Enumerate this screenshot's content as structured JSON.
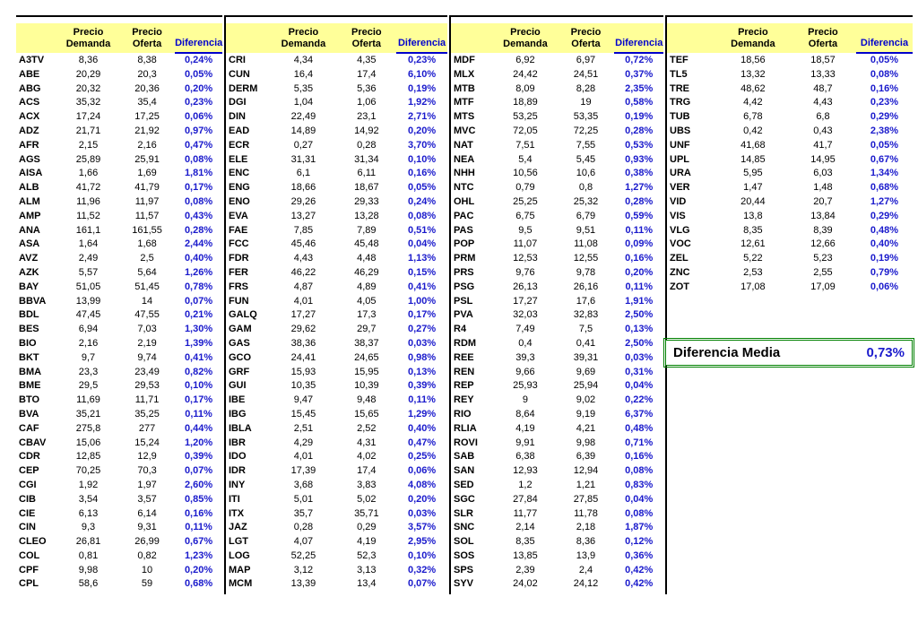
{
  "columns": {
    "ticker": "",
    "demanda": "Precio\nDemanda",
    "oferta": "Precio\nOferta",
    "diferencia": "Diferencia"
  },
  "colors": {
    "header_bg": "#FFFF99",
    "diferencia_text": "#1A1ACC",
    "header_diferencia_text": "#0000CC",
    "grid_line": "#000000",
    "summary_border": "#008000"
  },
  "groups": [
    {
      "rows": [
        [
          "A3TV",
          "8,36",
          "8,38",
          "0,24%"
        ],
        [
          "ABE",
          "20,29",
          "20,3",
          "0,05%"
        ],
        [
          "ABG",
          "20,32",
          "20,36",
          "0,20%"
        ],
        [
          "ACS",
          "35,32",
          "35,4",
          "0,23%"
        ],
        [
          "ACX",
          "17,24",
          "17,25",
          "0,06%"
        ],
        [
          "ADZ",
          "21,71",
          "21,92",
          "0,97%"
        ],
        [
          "AFR",
          "2,15",
          "2,16",
          "0,47%"
        ],
        [
          "AGS",
          "25,89",
          "25,91",
          "0,08%"
        ],
        [
          "AISA",
          "1,66",
          "1,69",
          "1,81%"
        ],
        [
          "ALB",
          "41,72",
          "41,79",
          "0,17%"
        ],
        [
          "ALM",
          "11,96",
          "11,97",
          "0,08%"
        ],
        [
          "AMP",
          "11,52",
          "11,57",
          "0,43%"
        ],
        [
          "ANA",
          "161,1",
          "161,55",
          "0,28%"
        ],
        [
          "ASA",
          "1,64",
          "1,68",
          "2,44%"
        ],
        [
          "AVZ",
          "2,49",
          "2,5",
          "0,40%"
        ],
        [
          "AZK",
          "5,57",
          "5,64",
          "1,26%"
        ],
        [
          "BAY",
          "51,05",
          "51,45",
          "0,78%"
        ],
        [
          "BBVA",
          "13,99",
          "14",
          "0,07%"
        ],
        [
          "BDL",
          "47,45",
          "47,55",
          "0,21%"
        ],
        [
          "BES",
          "6,94",
          "7,03",
          "1,30%"
        ],
        [
          "BIO",
          "2,16",
          "2,19",
          "1,39%"
        ],
        [
          "BKT",
          "9,7",
          "9,74",
          "0,41%"
        ],
        [
          "BMA",
          "23,3",
          "23,49",
          "0,82%"
        ],
        [
          "BME",
          "29,5",
          "29,53",
          "0,10%"
        ],
        [
          "BTO",
          "11,69",
          "11,71",
          "0,17%"
        ],
        [
          "BVA",
          "35,21",
          "35,25",
          "0,11%"
        ],
        [
          "CAF",
          "275,8",
          "277",
          "0,44%"
        ],
        [
          "CBAV",
          "15,06",
          "15,24",
          "1,20%"
        ],
        [
          "CDR",
          "12,85",
          "12,9",
          "0,39%"
        ],
        [
          "CEP",
          "70,25",
          "70,3",
          "0,07%"
        ],
        [
          "CGI",
          "1,92",
          "1,97",
          "2,60%"
        ],
        [
          "CIB",
          "3,54",
          "3,57",
          "0,85%"
        ],
        [
          "CIE",
          "6,13",
          "6,14",
          "0,16%"
        ],
        [
          "CIN",
          "9,3",
          "9,31",
          "0,11%"
        ],
        [
          "CLEO",
          "26,81",
          "26,99",
          "0,67%"
        ],
        [
          "COL",
          "0,81",
          "0,82",
          "1,23%"
        ],
        [
          "CPF",
          "9,98",
          "10",
          "0,20%"
        ],
        [
          "CPL",
          "58,6",
          "59",
          "0,68%"
        ]
      ]
    },
    {
      "rows": [
        [
          "CRI",
          "4,34",
          "4,35",
          "0,23%"
        ],
        [
          "CUN",
          "16,4",
          "17,4",
          "6,10%"
        ],
        [
          "DERM",
          "5,35",
          "5,36",
          "0,19%"
        ],
        [
          "DGI",
          "1,04",
          "1,06",
          "1,92%"
        ],
        [
          "DIN",
          "22,49",
          "23,1",
          "2,71%"
        ],
        [
          "EAD",
          "14,89",
          "14,92",
          "0,20%"
        ],
        [
          "ECR",
          "0,27",
          "0,28",
          "3,70%"
        ],
        [
          "ELE",
          "31,31",
          "31,34",
          "0,10%"
        ],
        [
          "ENC",
          "6,1",
          "6,11",
          "0,16%"
        ],
        [
          "ENG",
          "18,66",
          "18,67",
          "0,05%"
        ],
        [
          "ENO",
          "29,26",
          "29,33",
          "0,24%"
        ],
        [
          "EVA",
          "13,27",
          "13,28",
          "0,08%"
        ],
        [
          "FAE",
          "7,85",
          "7,89",
          "0,51%"
        ],
        [
          "FCC",
          "45,46",
          "45,48",
          "0,04%"
        ],
        [
          "FDR",
          "4,43",
          "4,48",
          "1,13%"
        ],
        [
          "FER",
          "46,22",
          "46,29",
          "0,15%"
        ],
        [
          "FRS",
          "4,87",
          "4,89",
          "0,41%"
        ],
        [
          "FUN",
          "4,01",
          "4,05",
          "1,00%"
        ],
        [
          "GALQ",
          "17,27",
          "17,3",
          "0,17%"
        ],
        [
          "GAM",
          "29,62",
          "29,7",
          "0,27%"
        ],
        [
          "GAS",
          "38,36",
          "38,37",
          "0,03%"
        ],
        [
          "GCO",
          "24,41",
          "24,65",
          "0,98%"
        ],
        [
          "GRF",
          "15,93",
          "15,95",
          "0,13%"
        ],
        [
          "GUI",
          "10,35",
          "10,39",
          "0,39%"
        ],
        [
          "IBE",
          "9,47",
          "9,48",
          "0,11%"
        ],
        [
          "IBG",
          "15,45",
          "15,65",
          "1,29%"
        ],
        [
          "IBLA",
          "2,51",
          "2,52",
          "0,40%"
        ],
        [
          "IBR",
          "4,29",
          "4,31",
          "0,47%"
        ],
        [
          "IDO",
          "4,01",
          "4,02",
          "0,25%"
        ],
        [
          "IDR",
          "17,39",
          "17,4",
          "0,06%"
        ],
        [
          "INY",
          "3,68",
          "3,83",
          "4,08%"
        ],
        [
          "ITI",
          "5,01",
          "5,02",
          "0,20%"
        ],
        [
          "ITX",
          "35,7",
          "35,71",
          "0,03%"
        ],
        [
          "JAZ",
          "0,28",
          "0,29",
          "3,57%"
        ],
        [
          "LGT",
          "4,07",
          "4,19",
          "2,95%"
        ],
        [
          "LOG",
          "52,25",
          "52,3",
          "0,10%"
        ],
        [
          "MAP",
          "3,12",
          "3,13",
          "0,32%"
        ],
        [
          "MCM",
          "13,39",
          "13,4",
          "0,07%"
        ]
      ]
    },
    {
      "rows": [
        [
          "MDF",
          "6,92",
          "6,97",
          "0,72%"
        ],
        [
          "MLX",
          "24,42",
          "24,51",
          "0,37%"
        ],
        [
          "MTB",
          "8,09",
          "8,28",
          "2,35%"
        ],
        [
          "MTF",
          "18,89",
          "19",
          "0,58%"
        ],
        [
          "MTS",
          "53,25",
          "53,35",
          "0,19%"
        ],
        [
          "MVC",
          "72,05",
          "72,25",
          "0,28%"
        ],
        [
          "NAT",
          "7,51",
          "7,55",
          "0,53%"
        ],
        [
          "NEA",
          "5,4",
          "5,45",
          "0,93%"
        ],
        [
          "NHH",
          "10,56",
          "10,6",
          "0,38%"
        ],
        [
          "NTC",
          "0,79",
          "0,8",
          "1,27%"
        ],
        [
          "OHL",
          "25,25",
          "25,32",
          "0,28%"
        ],
        [
          "PAC",
          "6,75",
          "6,79",
          "0,59%"
        ],
        [
          "PAS",
          "9,5",
          "9,51",
          "0,11%"
        ],
        [
          "POP",
          "11,07",
          "11,08",
          "0,09%"
        ],
        [
          "PRM",
          "12,53",
          "12,55",
          "0,16%"
        ],
        [
          "PRS",
          "9,76",
          "9,78",
          "0,20%"
        ],
        [
          "PSG",
          "26,13",
          "26,16",
          "0,11%"
        ],
        [
          "PSL",
          "17,27",
          "17,6",
          "1,91%"
        ],
        [
          "PVA",
          "32,03",
          "32,83",
          "2,50%"
        ],
        [
          "R4",
          "7,49",
          "7,5",
          "0,13%"
        ],
        [
          "RDM",
          "0,4",
          "0,41",
          "2,50%"
        ],
        [
          "REE",
          "39,3",
          "39,31",
          "0,03%"
        ],
        [
          "REN",
          "9,66",
          "9,69",
          "0,31%"
        ],
        [
          "REP",
          "25,93",
          "25,94",
          "0,04%"
        ],
        [
          "REY",
          "9",
          "9,02",
          "0,22%"
        ],
        [
          "RIO",
          "8,64",
          "9,19",
          "6,37%"
        ],
        [
          "RLIA",
          "4,19",
          "4,21",
          "0,48%"
        ],
        [
          "ROVI",
          "9,91",
          "9,98",
          "0,71%"
        ],
        [
          "SAB",
          "6,38",
          "6,39",
          "0,16%"
        ],
        [
          "SAN",
          "12,93",
          "12,94",
          "0,08%"
        ],
        [
          "SED",
          "1,2",
          "1,21",
          "0,83%"
        ],
        [
          "SGC",
          "27,84",
          "27,85",
          "0,04%"
        ],
        [
          "SLR",
          "11,77",
          "11,78",
          "0,08%"
        ],
        [
          "SNC",
          "2,14",
          "2,18",
          "1,87%"
        ],
        [
          "SOL",
          "8,35",
          "8,36",
          "0,12%"
        ],
        [
          "SOS",
          "13,85",
          "13,9",
          "0,36%"
        ],
        [
          "SPS",
          "2,39",
          "2,4",
          "0,42%"
        ],
        [
          "SYV",
          "24,02",
          "24,12",
          "0,42%"
        ]
      ]
    },
    {
      "rows": [
        [
          "TEF",
          "18,56",
          "18,57",
          "0,05%"
        ],
        [
          "TL5",
          "13,32",
          "13,33",
          "0,08%"
        ],
        [
          "TRE",
          "48,62",
          "48,7",
          "0,16%"
        ],
        [
          "TRG",
          "4,42",
          "4,43",
          "0,23%"
        ],
        [
          "TUB",
          "6,78",
          "6,8",
          "0,29%"
        ],
        [
          "UBS",
          "0,42",
          "0,43",
          "2,38%"
        ],
        [
          "UNF",
          "41,68",
          "41,7",
          "0,05%"
        ],
        [
          "UPL",
          "14,85",
          "14,95",
          "0,67%"
        ],
        [
          "URA",
          "5,95",
          "6,03",
          "1,34%"
        ],
        [
          "VER",
          "1,47",
          "1,48",
          "0,68%"
        ],
        [
          "VID",
          "20,44",
          "20,7",
          "1,27%"
        ],
        [
          "VIS",
          "13,8",
          "13,84",
          "0,29%"
        ],
        [
          "VLG",
          "8,35",
          "8,39",
          "0,48%"
        ],
        [
          "VOC",
          "12,61",
          "12,66",
          "0,40%"
        ],
        [
          "ZEL",
          "5,22",
          "5,23",
          "0,19%"
        ],
        [
          "ZNC",
          "2,53",
          "2,55",
          "0,79%"
        ],
        [
          "ZOT",
          "17,08",
          "17,09",
          "0,06%"
        ]
      ]
    }
  ],
  "summary": {
    "label": "Diferencia Media",
    "value": "0,73%"
  }
}
